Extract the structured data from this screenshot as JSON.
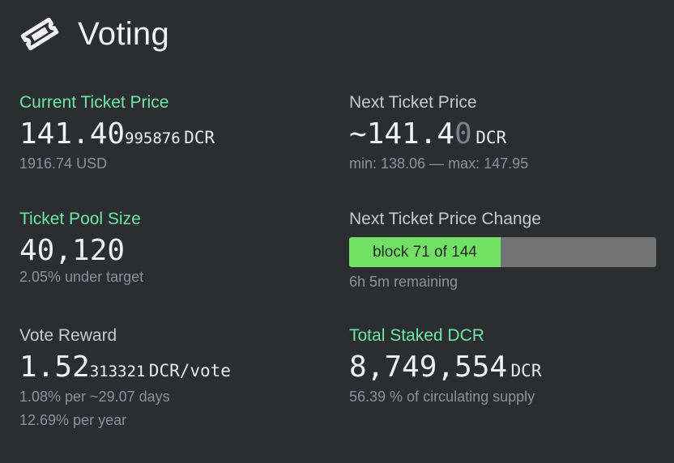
{
  "header": {
    "title": "Voting",
    "icon": "ticket-icon"
  },
  "current_ticket_price": {
    "label": "Current Ticket Price",
    "value_main": "141.40",
    "value_rest": "995876",
    "unit": "DCR",
    "fiat": "1916.74 USD"
  },
  "next_ticket_price": {
    "label": "Next Ticket Price",
    "value_main": "~141.4",
    "value_dim": "0",
    "unit": "DCR",
    "range": "min: 138.06 — max: 147.95"
  },
  "ticket_pool": {
    "label": "Ticket Pool Size",
    "value": "40,120",
    "sub": "2.05% under target"
  },
  "price_change": {
    "label": "Next Ticket Price Change",
    "progress_text": "block 71 of 144",
    "progress_fraction": 0.493,
    "remaining": "6h 5m remaining"
  },
  "vote_reward": {
    "label": "Vote Reward",
    "value_main": "1.52",
    "value_rest": "313321",
    "unit": "DCR/vote",
    "per_period": "1.08% per ~29.07 days",
    "per_year": "12.69% per year"
  },
  "total_staked": {
    "label": "Total Staked DCR",
    "value": "8,749,554",
    "unit": "DCR",
    "sub": "56.39 % of circulating supply"
  },
  "colors": {
    "background": "#2b2d31",
    "accent_green": "#6ce8a6",
    "progress_fill": "#72df65",
    "progress_track": "#737373"
  }
}
